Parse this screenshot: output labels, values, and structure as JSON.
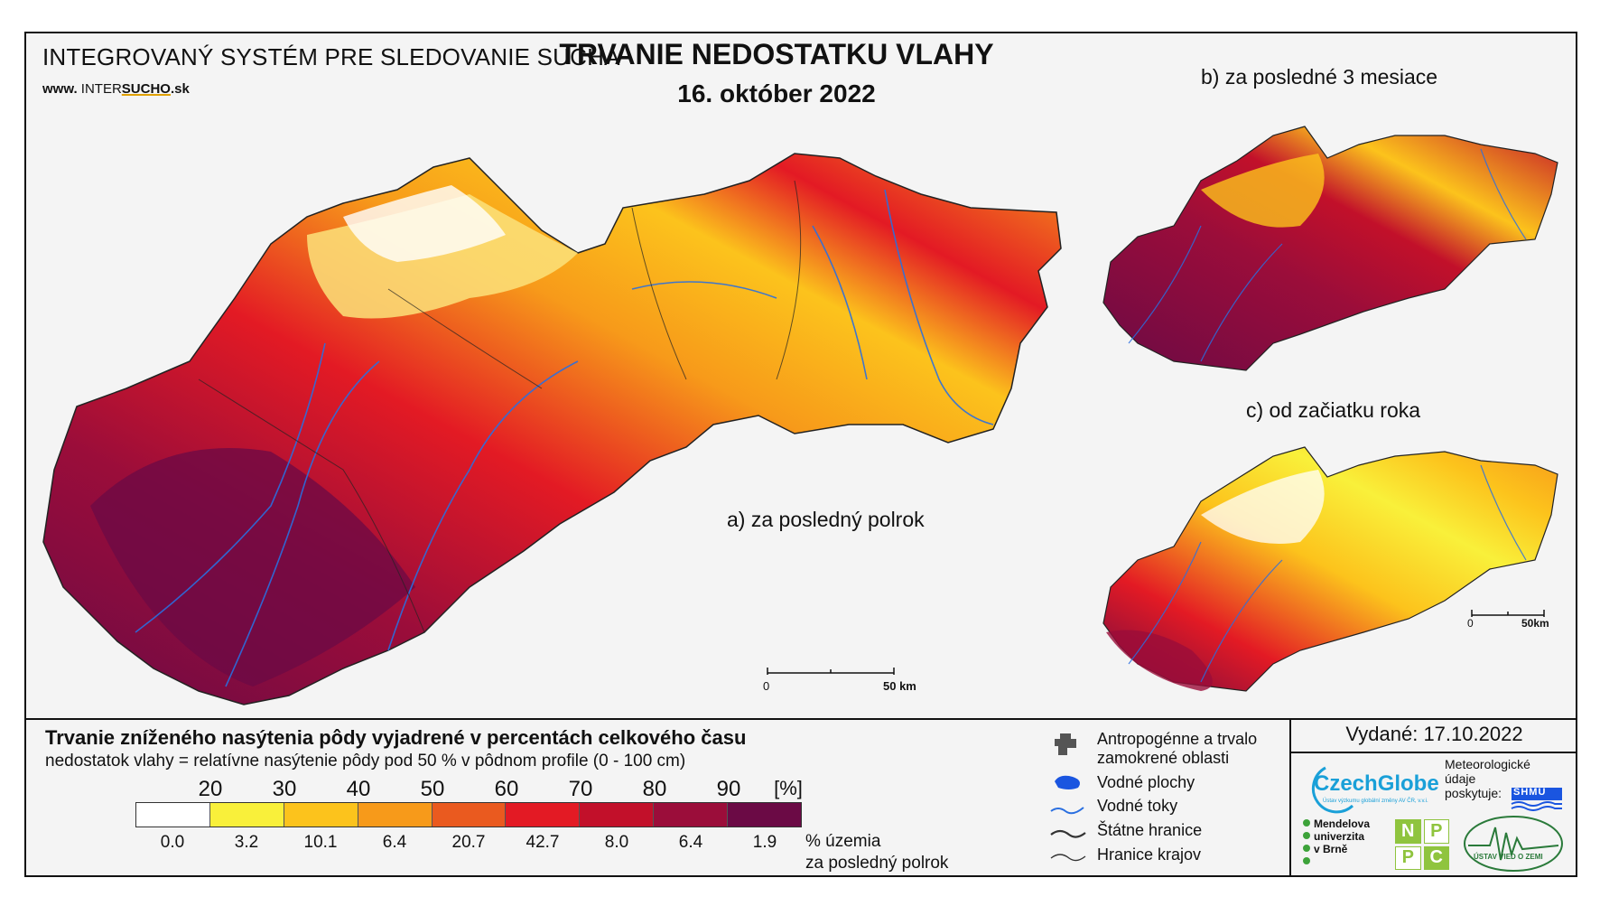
{
  "header": {
    "system_title": "INTEGROVANÝ SYSTÉM PRE SLEDOVANIE SUCHA",
    "website_prefix": "www.",
    "website_brand_a": "INTER",
    "website_brand_b": "SUCHO",
    "website_suffix": ".sk",
    "map_title": "TRVANIE NEDOSTATKU VLAHY",
    "map_date": "16. október 2022"
  },
  "panels": {
    "a": {
      "label": "a) za posledný polrok",
      "scale_start": "0",
      "scale_end": "50 km"
    },
    "b": {
      "label": "b) za posledné 3 mesiace"
    },
    "c": {
      "label": "c) od začiatku roka",
      "scale_start": "0",
      "scale_end": "50km"
    }
  },
  "legend": {
    "title": "Trvanie zníženého nasýtenia pôdy vyjadrené v percentách celkového času",
    "subtitle": "nedostatok vlahy = relatívne nasýtenie pôdy pod 50 % v pôdnom profile (0 - 100 cm)",
    "ticks": [
      "20",
      "30",
      "40",
      "50",
      "60",
      "70",
      "80",
      "90"
    ],
    "unit": "[%]",
    "colors": [
      "#ffffff",
      "#f9f03a",
      "#fcc31c",
      "#f79a1a",
      "#ea5a1f",
      "#e31a24",
      "#c2102a",
      "#9b0d3a",
      "#6b0a45"
    ],
    "area_percent": [
      "0.0",
      "3.2",
      "10.1",
      "6.4",
      "20.7",
      "42.7",
      "8.0",
      "6.4",
      "1.9"
    ],
    "area_unit_line1": "% územia",
    "area_unit_line2": "za posledný polrok"
  },
  "symbols": {
    "anthropogenic_line1": "Antropogénne a trvalo",
    "anthropogenic_line2": "zamokrené oblasti",
    "water_bodies": "Vodné plochy",
    "rivers": "Vodné toky",
    "state_border": "Štátne hranice",
    "region_border": "Hranice krajov"
  },
  "credits": {
    "issued": "Vydané: 17.10.2022",
    "meteo_line1": "Meteorologické",
    "meteo_line2": "údaje",
    "meteo_line3": "poskytuje:",
    "shmu": "SHMÚ",
    "czechglobe": "CzechGlobe",
    "czechglobe_sub": "Ústav výzkumu globální změny AV ČR, v.v.i.",
    "mendel_1": "Mendelova",
    "mendel_2": "univerzita",
    "mendel_3": "v Brně",
    "nppc": [
      "N",
      "P",
      "P",
      "C"
    ],
    "uvz": "ÚSTAV VIED O ZEMI"
  }
}
